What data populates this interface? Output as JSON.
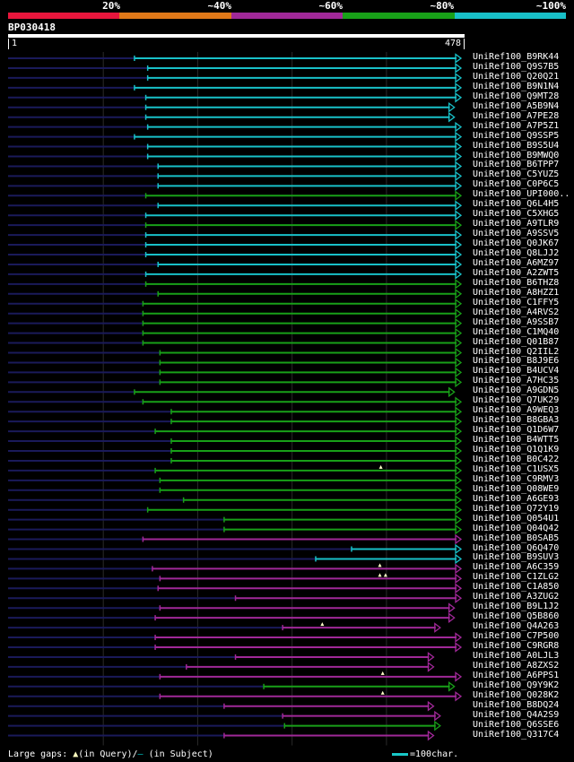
{
  "legend": {
    "items": [
      {
        "label": "20%",
        "color": "#e8163c"
      },
      {
        "label": "~40%",
        "color": "#e07818"
      },
      {
        "label": "~60%",
        "color": "#a02898"
      },
      {
        "label": "~80%",
        "color": "#18a018"
      },
      {
        "label": "~100%",
        "color": "#18c0c8"
      }
    ]
  },
  "query": {
    "id": "BP030418",
    "start": "1",
    "end": "478",
    "length": 478
  },
  "colors": {
    "cyan": "#18c0c8",
    "green": "#18a018",
    "magenta": "#a02898",
    "navy": "#1a1a5a",
    "grid": "#2a2a2a",
    "marker": "#ffffc8"
  },
  "chart_data": {
    "type": "alignment",
    "query_range": [
      1,
      478
    ],
    "hits": [
      {
        "name": "UniRef100_B9RK44",
        "start": 133,
        "end": 478,
        "identity": "~100%"
      },
      {
        "name": "UniRef100_Q9S7B5",
        "start": 147,
        "end": 478,
        "identity": "~100%"
      },
      {
        "name": "UniRef100_Q20Q21",
        "start": 147,
        "end": 478,
        "identity": "~100%"
      },
      {
        "name": "UniRef100_B9N1N4",
        "start": 133,
        "end": 478,
        "identity": "~100%"
      },
      {
        "name": "UniRef100_Q9MT28",
        "start": 145,
        "end": 478,
        "identity": "~100%"
      },
      {
        "name": "UniRef100_A5B9N4",
        "start": 145,
        "end": 471,
        "identity": "~100%"
      },
      {
        "name": "UniRef100_A7PE28",
        "start": 145,
        "end": 471,
        "identity": "~100%"
      },
      {
        "name": "UniRef100_A7P5Z1",
        "start": 147,
        "end": 478,
        "identity": "~100%"
      },
      {
        "name": "UniRef100_Q9SSP5",
        "start": 133,
        "end": 478,
        "identity": "~100%"
      },
      {
        "name": "UniRef100_B9S5U4",
        "start": 147,
        "end": 478,
        "identity": "~100%"
      },
      {
        "name": "UniRef100_B9MWQ0",
        "start": 147,
        "end": 478,
        "identity": "~100%"
      },
      {
        "name": "UniRef100_B6TPP7",
        "start": 158,
        "end": 478,
        "identity": "~100%"
      },
      {
        "name": "UniRef100_C5YUZ5",
        "start": 158,
        "end": 478,
        "identity": "~100%"
      },
      {
        "name": "UniRef100_C0P6C5",
        "start": 158,
        "end": 478,
        "identity": "~100%"
      },
      {
        "name": "UniRef100_UPI000..",
        "start": 145,
        "end": 478,
        "identity": "~80%"
      },
      {
        "name": "UniRef100_Q6L4H5",
        "start": 158,
        "end": 478,
        "identity": "~100%"
      },
      {
        "name": "UniRef100_C5XHG5",
        "start": 145,
        "end": 478,
        "identity": "~100%"
      },
      {
        "name": "UniRef100_A9TLR9",
        "start": 145,
        "end": 478,
        "identity": "~80%"
      },
      {
        "name": "UniRef100_A9SSV5",
        "start": 145,
        "end": 478,
        "identity": "~100%"
      },
      {
        "name": "UniRef100_Q0JK67",
        "start": 145,
        "end": 478,
        "identity": "~100%"
      },
      {
        "name": "UniRef100_Q8LJJ2",
        "start": 145,
        "end": 478,
        "identity": "~100%"
      },
      {
        "name": "UniRef100_A6MZ97",
        "start": 158,
        "end": 478,
        "identity": "~100%"
      },
      {
        "name": "UniRef100_A2ZWT5",
        "start": 145,
        "end": 478,
        "identity": "~100%"
      },
      {
        "name": "UniRef100_B6THZ8",
        "start": 145,
        "end": 478,
        "identity": "~80%"
      },
      {
        "name": "UniRef100_A8HZZ1",
        "start": 158,
        "end": 478,
        "identity": "~80%"
      },
      {
        "name": "UniRef100_C1FFY5",
        "start": 142,
        "end": 478,
        "identity": "~80%"
      },
      {
        "name": "UniRef100_A4RVS2",
        "start": 142,
        "end": 478,
        "identity": "~80%"
      },
      {
        "name": "UniRef100_A9SSB7",
        "start": 142,
        "end": 478,
        "identity": "~80%"
      },
      {
        "name": "UniRef100_C1MQ40",
        "start": 142,
        "end": 478,
        "identity": "~80%"
      },
      {
        "name": "UniRef100_Q01B87",
        "start": 142,
        "end": 478,
        "identity": "~80%"
      },
      {
        "name": "UniRef100_Q2IIL2",
        "start": 160,
        "end": 478,
        "identity": "~80%"
      },
      {
        "name": "UniRef100_B8J9E6",
        "start": 160,
        "end": 478,
        "identity": "~80%"
      },
      {
        "name": "UniRef100_B4UCV4",
        "start": 160,
        "end": 478,
        "identity": "~80%"
      },
      {
        "name": "UniRef100_A7HC35",
        "start": 160,
        "end": 478,
        "identity": "~80%"
      },
      {
        "name": "UniRef100_A9GDN5",
        "start": 133,
        "end": 471,
        "identity": "~80%"
      },
      {
        "name": "UniRef100_Q7UK29",
        "start": 142,
        "end": 478,
        "identity": "~80%"
      },
      {
        "name": "UniRef100_A9WEQ3",
        "start": 172,
        "end": 478,
        "identity": "~80%"
      },
      {
        "name": "UniRef100_B8GBA3",
        "start": 172,
        "end": 478,
        "identity": "~80%"
      },
      {
        "name": "UniRef100_Q1D6W7",
        "start": 155,
        "end": 478,
        "identity": "~80%"
      },
      {
        "name": "UniRef100_B4WTT5",
        "start": 172,
        "end": 478,
        "identity": "~80%"
      },
      {
        "name": "UniRef100_Q1Q1K9",
        "start": 172,
        "end": 478,
        "identity": "~80%"
      },
      {
        "name": "UniRef100_B0C422",
        "start": 172,
        "end": 478,
        "identity": "~80%"
      },
      {
        "name": "UniRef100_C1USX5",
        "start": 155,
        "end": 478,
        "identity": "~80%",
        "markers": [
          394
        ]
      },
      {
        "name": "UniRef100_C9RMV3",
        "start": 160,
        "end": 478,
        "identity": "~80%"
      },
      {
        "name": "UniRef100_Q08WE9",
        "start": 160,
        "end": 478,
        "identity": "~80%"
      },
      {
        "name": "UniRef100_A6GE93",
        "start": 185,
        "end": 478,
        "identity": "~80%"
      },
      {
        "name": "UniRef100_Q72Y19",
        "start": 147,
        "end": 478,
        "identity": "~80%"
      },
      {
        "name": "UniRef100_Q054U1",
        "start": 228,
        "end": 478,
        "identity": "~80%"
      },
      {
        "name": "UniRef100_Q04Q42",
        "start": 228,
        "end": 478,
        "identity": "~80%"
      },
      {
        "name": "UniRef100_B0SAB5",
        "start": 142,
        "end": 478,
        "identity": "~60%"
      },
      {
        "name": "UniRef100_Q6Q470",
        "start": 363,
        "end": 478,
        "identity": "~100%"
      },
      {
        "name": "UniRef100_B9SUV3",
        "start": 325,
        "end": 478,
        "identity": "~100%"
      },
      {
        "name": "UniRef100_A6C359",
        "start": 152,
        "end": 478,
        "identity": "~60%",
        "markers": [
          393
        ]
      },
      {
        "name": "UniRef100_C1ZLG2",
        "start": 160,
        "end": 478,
        "identity": "~60%",
        "markers": [
          393,
          399
        ]
      },
      {
        "name": "UniRef100_C1A850",
        "start": 158,
        "end": 478,
        "identity": "~60%"
      },
      {
        "name": "UniRef100_A3ZUG2",
        "start": 240,
        "end": 478,
        "identity": "~60%"
      },
      {
        "name": "UniRef100_B9L1J2",
        "start": 160,
        "end": 471,
        "identity": "~60%"
      },
      {
        "name": "UniRef100_Q5B860",
        "start": 155,
        "end": 471,
        "identity": "~60%"
      },
      {
        "name": "UniRef100_Q4A263",
        "start": 290,
        "end": 456,
        "identity": "~60%",
        "markers": [
          332
        ]
      },
      {
        "name": "UniRef100_C7P500",
        "start": 155,
        "end": 478,
        "identity": "~60%"
      },
      {
        "name": "UniRef100_C9RGR8",
        "start": 155,
        "end": 478,
        "identity": "~60%"
      },
      {
        "name": "UniRef100_A0LJL3",
        "start": 240,
        "end": 449,
        "identity": "~60%"
      },
      {
        "name": "UniRef100_A8ZXS2",
        "start": 188,
        "end": 449,
        "identity": "~60%"
      },
      {
        "name": "UniRef100_A6PPS1",
        "start": 160,
        "end": 478,
        "identity": "~60%",
        "markers": [
          396
        ]
      },
      {
        "name": "UniRef100_Q9Y9K2",
        "start": 270,
        "end": 471,
        "identity": "~80%"
      },
      {
        "name": "UniRef100_Q028K2",
        "start": 160,
        "end": 478,
        "identity": "~60%",
        "markers": [
          396
        ]
      },
      {
        "name": "UniRef100_B8DQ24",
        "start": 228,
        "end": 449,
        "identity": "~60%"
      },
      {
        "name": "UniRef100_Q4A2S9",
        "start": 290,
        "end": 456,
        "identity": "~60%"
      },
      {
        "name": "UniRef100_Q6SSE6",
        "start": 292,
        "end": 456,
        "identity": "~80%"
      },
      {
        "name": "UniRef100_Q317C4",
        "start": 228,
        "end": 449,
        "identity": "~60%"
      }
    ]
  },
  "footer": {
    "prefix": "Large gaps:",
    "tri_glyph": "▲",
    "in_query": "(in Query)/",
    "dash_glyph": "–",
    "in_subject": " (in Subject)",
    "scale_text": "=100char."
  }
}
